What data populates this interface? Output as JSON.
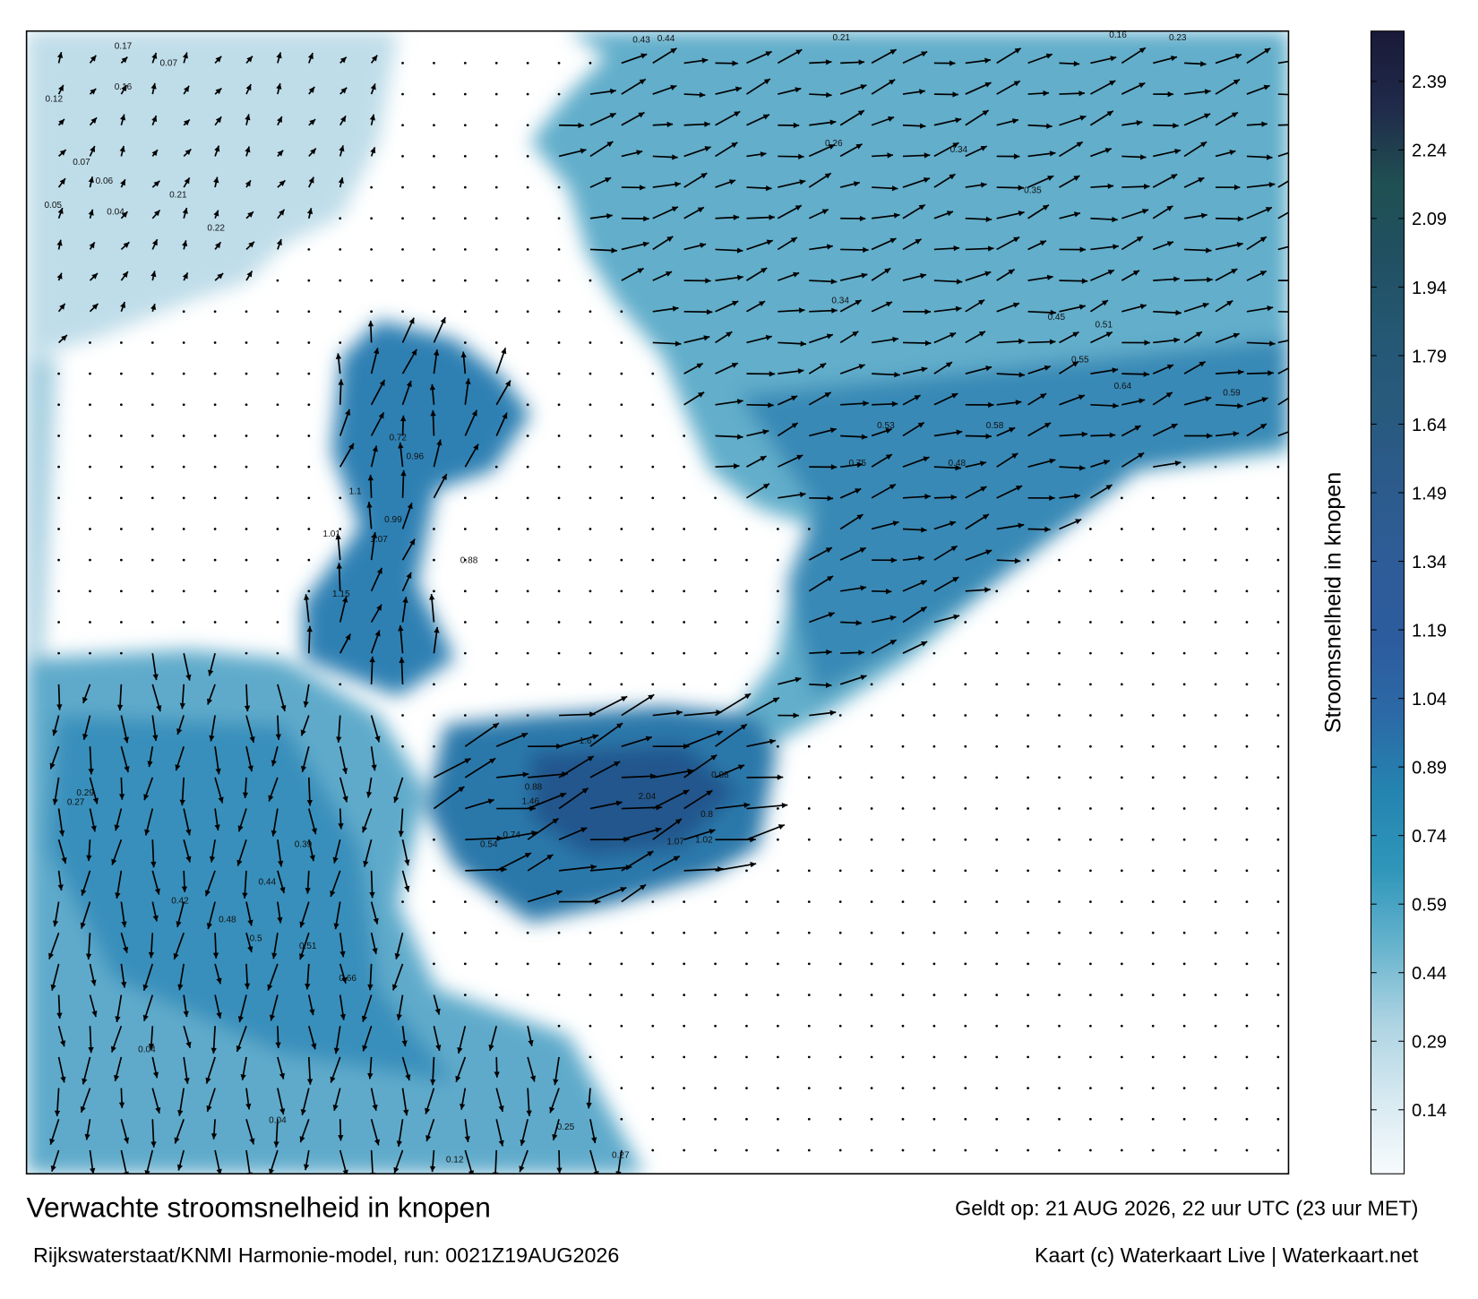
{
  "title": "Verwachte stroomsnelheid in knopen",
  "subtitle": "Rijkswaterstaat/KNMI Harmonie-model, run: 0021Z19AUG2026",
  "valid_time": "Geldt op: 21 AUG 2026, 22 uur UTC (23 uur MET)",
  "credit": "Kaart (c) Waterkaart Live | Waterkaart.net",
  "colorbar": {
    "label": "Stroomsnelheid in knopen",
    "clim": [
      0,
      2.5
    ],
    "ticks": [
      0.14,
      0.29,
      0.44,
      0.59,
      0.74,
      0.89,
      1.04,
      1.19,
      1.34,
      1.49,
      1.64,
      1.79,
      1.94,
      2.09,
      2.24,
      2.39
    ],
    "colors": [
      "#f7fbfd",
      "#d6e9f1",
      "#acd3e2",
      "#66b3cd",
      "#2f96ba",
      "#2485b0",
      "#2b6aa6",
      "#2d5c9e",
      "#2e5c98",
      "#2c5b8c",
      "#285a7e",
      "#245873",
      "#215062",
      "#1f5052",
      "#202a4a",
      "#191a38"
    ]
  },
  "map": {
    "labels": [
      0.17,
      0.07,
      0.12,
      0.16,
      0.07,
      0.06,
      0.05,
      0.04,
      0.21,
      0.22,
      0.21,
      0.23,
      0.16,
      0.43,
      0.44,
      0.34,
      0.26,
      0.35,
      0.55,
      0.59,
      0.58,
      0.48,
      0.75,
      0.64,
      0.51,
      0.45,
      0.34,
      0.53,
      2.04,
      1.6,
      1.46,
      0.74,
      0.54,
      0.98,
      0.8,
      1.02,
      1.07,
      0.88,
      0.96,
      0.72,
      1.1,
      0.99,
      1.01,
      1.07,
      0.88,
      1.15,
      0.04,
      0.04,
      0.5,
      0.51,
      0.66,
      0.44,
      0.48,
      0.42,
      0.29,
      0.27,
      0.39,
      0.12,
      0.27,
      0.25
    ]
  }
}
